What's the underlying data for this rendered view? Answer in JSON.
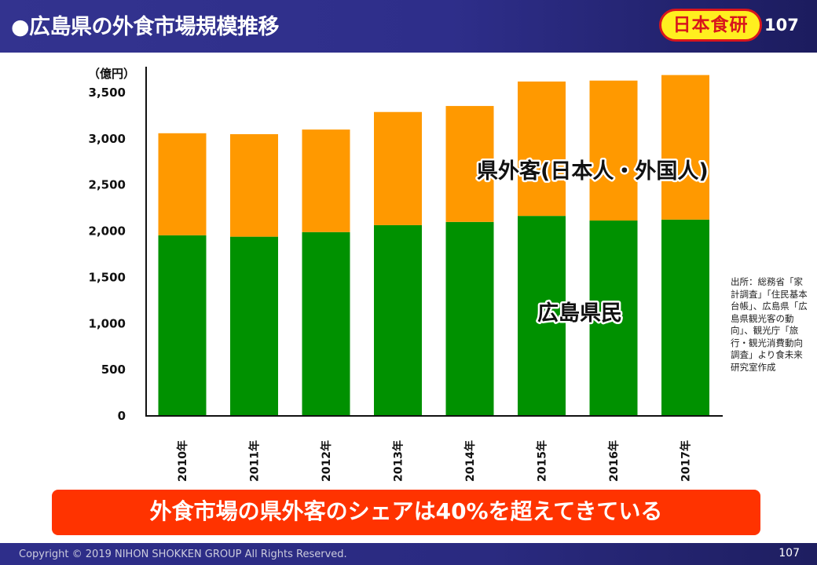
{
  "header": {
    "title": "●広島県の外食市場規模推移",
    "logo_text": "日本食研",
    "page_number": "107"
  },
  "colors": {
    "header_bg": "#2e2e8a",
    "resident": "#009100",
    "visitor": "#ff9900",
    "banner": "#ff3300",
    "logo_bg": "#ffef1f",
    "logo_border": "#d8161c"
  },
  "chart_data": {
    "type": "bar",
    "stacked": true,
    "title": "広島県の外食市場規模推移",
    "ylabel": "（億円）",
    "xlabel": "",
    "ylim": [
      0,
      3500
    ],
    "yticks": [
      0,
      500,
      1000,
      1500,
      2000,
      2500,
      3000,
      3500
    ],
    "ytick_labels": [
      "0",
      "500",
      "1,000",
      "1,500",
      "2,000",
      "2,500",
      "3,000",
      "3,500"
    ],
    "categories": [
      "2010年",
      "2011年",
      "2012年",
      "2013年",
      "2014年",
      "2015年",
      "2016年",
      "2017年"
    ],
    "series": [
      {
        "name": "広島県民",
        "color": "#009100",
        "values": [
          1955,
          1940,
          1990,
          2065,
          2100,
          2165,
          2115,
          2125
        ]
      },
      {
        "name": "県外客(日本人・外国人)",
        "color": "#ff9900",
        "values": [
          1105,
          1110,
          1110,
          1225,
          1255,
          1455,
          1515,
          1565
        ]
      }
    ],
    "annotations": [
      "県外客(日本人・外国人)",
      "広島県民"
    ],
    "grid": false,
    "legend": "none (inline labels)"
  },
  "source_note": "出所：総務省「家計調査」「住民基本台帳」、広島県「広島県観光客の動向」、観光庁「旅行・観光消費動向調査」より食未来研究室作成",
  "banner_text": "外食市場の県外客のシェアは40%を超えてきている",
  "footer": {
    "copyright": "Copyright © 2019 NIHON SHOKKEN GROUP All Rights Reserved.",
    "page_number": "107"
  }
}
